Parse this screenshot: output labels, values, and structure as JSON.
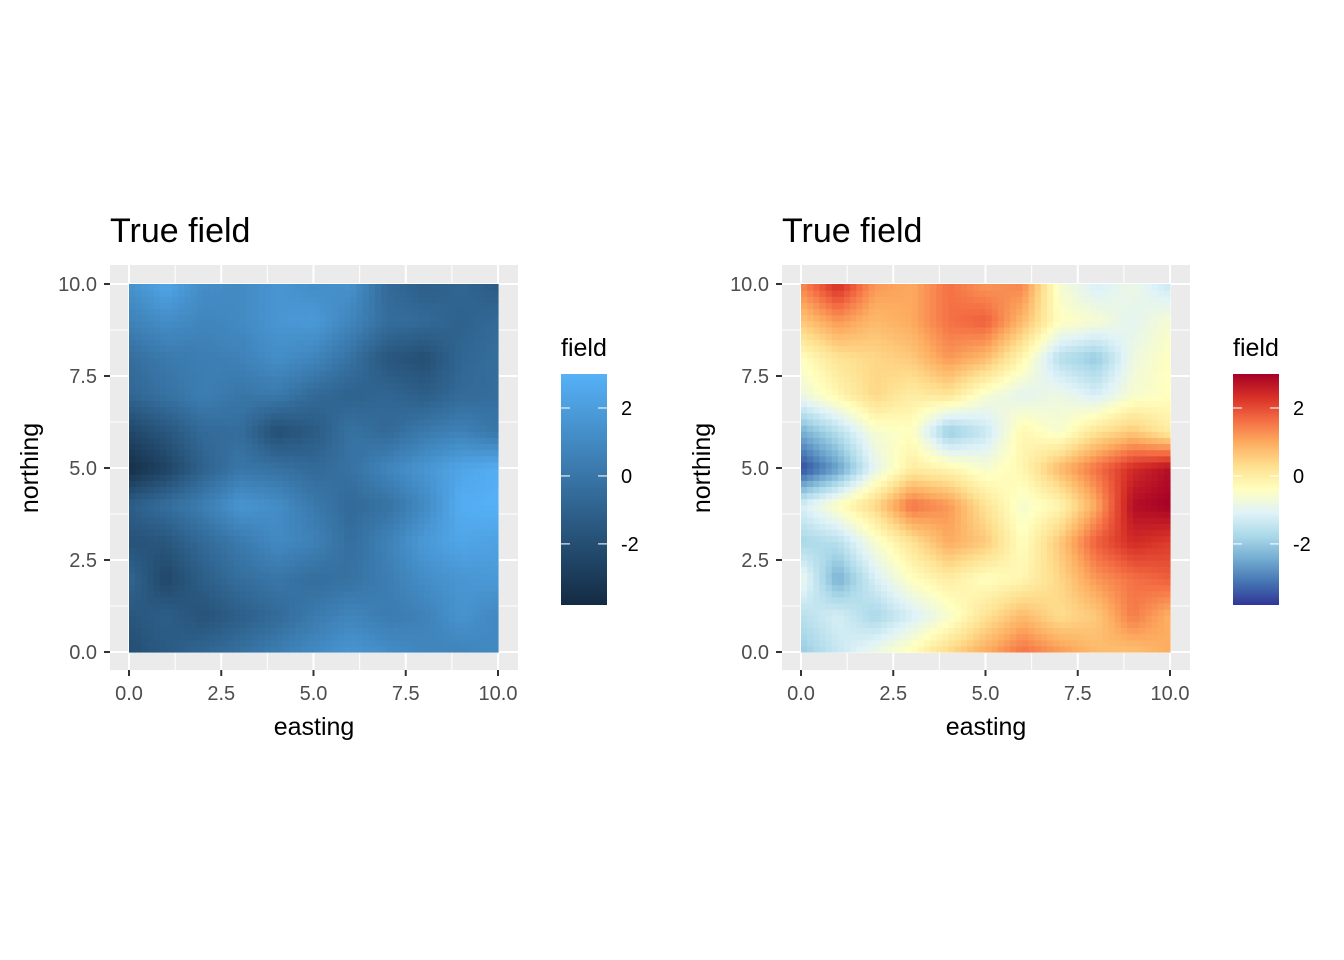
{
  "chart_data": [
    {
      "type": "heatmap",
      "title": "True field",
      "xlabel": "easting",
      "ylabel": "northing",
      "xlim": [
        0,
        10
      ],
      "ylim": [
        0,
        10
      ],
      "xticks": [
        "0.0",
        "2.5",
        "5.0",
        "7.5",
        "10.0"
      ],
      "yticks": [
        "0.0",
        "2.5",
        "5.0",
        "7.5",
        "10.0"
      ],
      "grid": true,
      "legend": {
        "title": "field",
        "placement": "right",
        "labels": [
          "2",
          "0",
          "-2"
        ],
        "range": [
          -3.8,
          3.0
        ],
        "colors": [
          "#132B43",
          "#56B1F7"
        ]
      },
      "grid_resolution": 10,
      "values": [
        [
          -2.0,
          -1.4,
          -0.8,
          -0.3,
          0.4,
          1.0,
          1.6,
          1.2,
          0.8,
          0.7,
          1.0
        ],
        [
          -1.6,
          -1.2,
          -1.8,
          -1.2,
          -0.6,
          0.2,
          0.8,
          0.3,
          0.6,
          1.5,
          0.9
        ],
        [
          -0.8,
          -2.4,
          -1.2,
          -0.4,
          0.0,
          -0.4,
          -0.2,
          0.4,
          1.2,
          1.6,
          1.8
        ],
        [
          -1.8,
          -1.6,
          -0.6,
          0.2,
          1.0,
          0.6,
          -0.4,
          0.6,
          1.8,
          2.4,
          2.2
        ],
        [
          -1.2,
          -0.4,
          0.4,
          1.6,
          1.2,
          0.2,
          -0.6,
          -0.2,
          1.0,
          2.8,
          3.0
        ],
        [
          -3.6,
          -2.6,
          -1.0,
          0.0,
          -0.2,
          -0.6,
          -0.2,
          0.8,
          1.6,
          2.4,
          2.8
        ],
        [
          -2.4,
          -1.6,
          -0.6,
          -0.4,
          -2.0,
          -1.4,
          -0.2,
          -0.6,
          0.2,
          0.6,
          0.0
        ],
        [
          -0.8,
          -0.2,
          0.4,
          0.0,
          0.2,
          -0.6,
          -1.0,
          -0.8,
          -1.2,
          -0.6,
          -0.4
        ],
        [
          -0.4,
          0.2,
          0.4,
          0.6,
          1.2,
          0.8,
          -0.2,
          -1.6,
          -2.0,
          -0.8,
          -0.4
        ],
        [
          0.6,
          1.2,
          0.8,
          1.0,
          1.6,
          1.8,
          0.8,
          -0.4,
          -0.6,
          -1.0,
          -0.6
        ],
        [
          1.4,
          2.4,
          1.2,
          1.0,
          1.6,
          1.2,
          1.4,
          -0.6,
          -1.2,
          -0.8,
          -1.4
        ]
      ]
    },
    {
      "type": "heatmap",
      "title": "True field",
      "xlabel": "easting",
      "ylabel": "northing",
      "xlim": [
        0,
        10
      ],
      "ylim": [
        0,
        10
      ],
      "xticks": [
        "0.0",
        "2.5",
        "5.0",
        "7.5",
        "10.0"
      ],
      "yticks": [
        "0.0",
        "2.5",
        "5.0",
        "7.5",
        "10.0"
      ],
      "grid": true,
      "legend": {
        "title": "field",
        "placement": "right",
        "labels": [
          "2",
          "0",
          "-2"
        ],
        "range": [
          -3.8,
          3.0
        ],
        "colors": [
          "#313695",
          "#4575B4",
          "#74ADD1",
          "#ABD9E9",
          "#E0F3F8",
          "#FFFFBF",
          "#FEE090",
          "#FDAE61",
          "#F46D43",
          "#D73027",
          "#A50026"
        ]
      },
      "grid_resolution": 10,
      "values": [
        [
          -2.0,
          -1.4,
          -0.8,
          -0.3,
          0.4,
          1.0,
          1.6,
          1.2,
          0.8,
          0.7,
          1.0
        ],
        [
          -1.6,
          -1.2,
          -1.8,
          -1.2,
          -0.6,
          0.2,
          0.8,
          0.3,
          0.6,
          1.5,
          0.9
        ],
        [
          -0.8,
          -2.4,
          -1.2,
          -0.4,
          0.0,
          -0.4,
          -0.2,
          0.4,
          1.2,
          1.6,
          1.8
        ],
        [
          -1.8,
          -1.6,
          -0.6,
          0.2,
          1.0,
          0.6,
          -0.4,
          0.6,
          1.8,
          2.4,
          2.2
        ],
        [
          -1.2,
          -0.4,
          0.4,
          1.6,
          1.2,
          0.2,
          -0.6,
          -0.2,
          1.0,
          2.8,
          3.0
        ],
        [
          -3.6,
          -2.6,
          -1.0,
          0.0,
          -0.2,
          -0.6,
          -0.2,
          0.8,
          1.6,
          2.4,
          2.8
        ],
        [
          -2.4,
          -1.6,
          -0.6,
          -0.4,
          -2.0,
          -1.4,
          -0.2,
          -0.6,
          0.2,
          0.6,
          0.0
        ],
        [
          -0.8,
          -0.2,
          0.4,
          0.0,
          0.2,
          -0.6,
          -1.0,
          -0.8,
          -1.2,
          -0.6,
          -0.4
        ],
        [
          -0.4,
          0.2,
          0.4,
          0.6,
          1.2,
          0.8,
          -0.2,
          -1.6,
          -2.0,
          -0.8,
          -0.4
        ],
        [
          0.6,
          1.2,
          0.8,
          1.0,
          1.6,
          1.8,
          0.8,
          -0.4,
          -0.6,
          -1.0,
          -0.6
        ],
        [
          1.4,
          2.4,
          1.2,
          1.0,
          1.6,
          1.2,
          1.4,
          -0.6,
          -1.2,
          -0.8,
          -1.4
        ]
      ]
    }
  ]
}
